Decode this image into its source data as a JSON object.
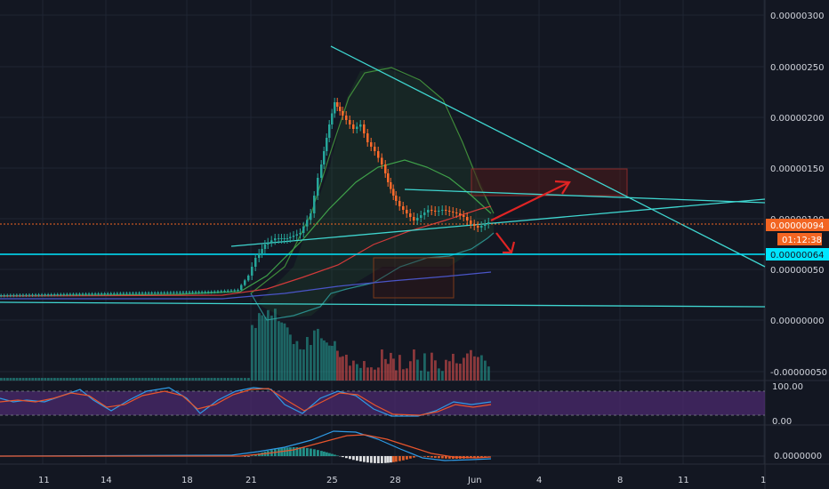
{
  "chart_data": {
    "type": "candlestick",
    "price_axis": {
      "ticks": [
        "0.00000300",
        "0.00000250",
        "0.00000200",
        "0.00000150",
        "0.00000100",
        "0.00000050",
        "0.00000000",
        "-0.00000050"
      ],
      "ylim": [
        -6e-07,
        3e-06
      ]
    },
    "x_axis": {
      "ticks": [
        "11",
        "14",
        "18",
        "21",
        "25",
        "28",
        "Jun",
        "4",
        "8",
        "11",
        "1"
      ]
    },
    "badges": {
      "last_price": "0.00000094",
      "countdown": "01:12:38",
      "level": "0.00000064"
    },
    "stoch_panel": {
      "ticks": [
        "100.00",
        "0.00"
      ]
    },
    "macd_panel": {
      "ticks": [
        "0.0000000"
      ]
    },
    "colors": {
      "background": "#131722",
      "up": "#26a69a",
      "down": "#ff6a2b",
      "trendline": "#3fd6d0",
      "arrow": "#e02424",
      "badge_price": "#f26522",
      "badge_level": "#00e5ff",
      "stoch_band": "#4b2a6e"
    }
  }
}
